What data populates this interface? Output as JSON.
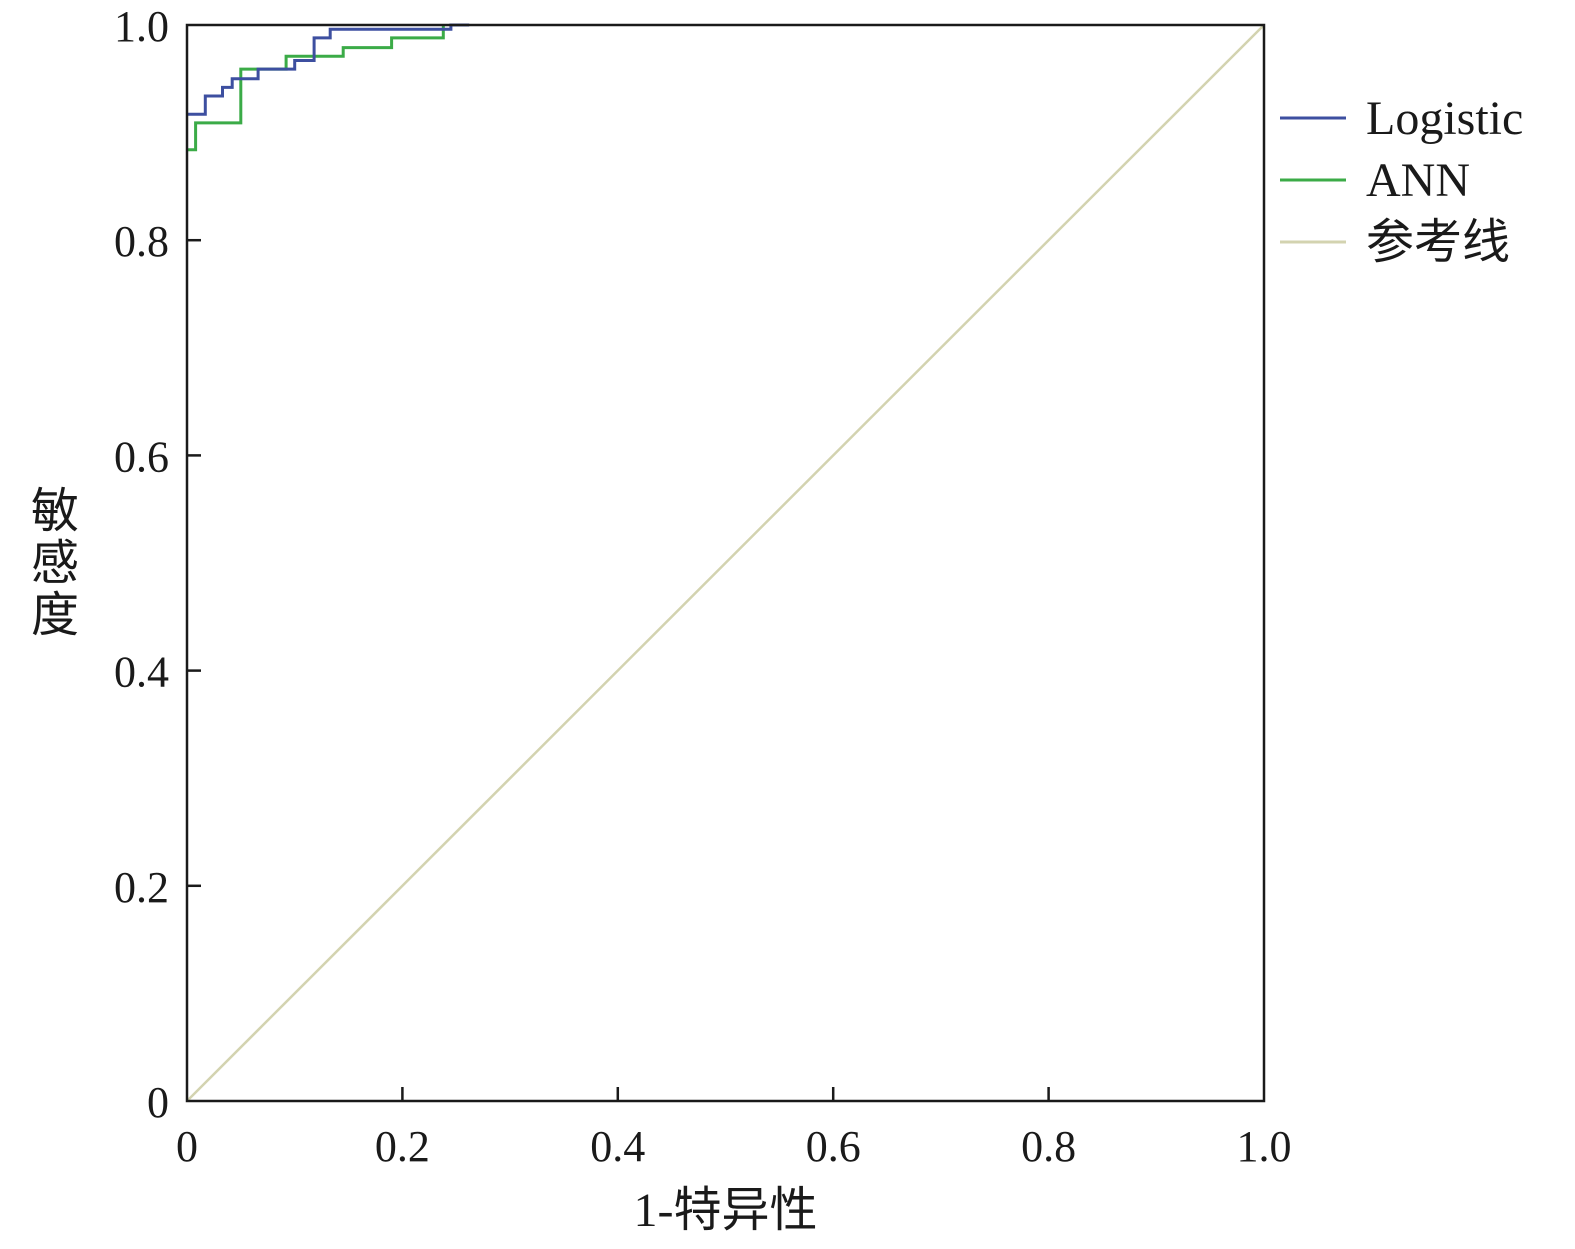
{
  "chart_data": {
    "type": "line",
    "xlabel": "1-特异性",
    "ylabel": "敏感度",
    "xlim": [
      0,
      1
    ],
    "ylim": [
      0,
      1
    ],
    "x_ticks": [
      0,
      0.2,
      0.4,
      0.6,
      0.8,
      1.0
    ],
    "x_tick_labels": [
      "0",
      "0.2",
      "0.4",
      "0.6",
      "0.8",
      "1.0"
    ],
    "y_ticks": [
      0,
      0.2,
      0.4,
      0.6,
      0.8,
      1.0
    ],
    "y_tick_labels": [
      "0",
      "0.2",
      "0.4",
      "0.6",
      "0.8",
      "1.0"
    ],
    "grid": false,
    "legend_position": "right",
    "series": [
      {
        "name": "Logistic",
        "color": "#3d4fa0",
        "step": true,
        "points": [
          [
            0,
            0.917
          ],
          [
            0.017,
            0.917
          ],
          [
            0.017,
            0.934
          ],
          [
            0.033,
            0.934
          ],
          [
            0.033,
            0.942
          ],
          [
            0.042,
            0.942
          ],
          [
            0.042,
            0.95
          ],
          [
            0.066,
            0.95
          ],
          [
            0.066,
            0.959
          ],
          [
            0.1,
            0.959
          ],
          [
            0.1,
            0.967
          ],
          [
            0.118,
            0.967
          ],
          [
            0.118,
            0.988
          ],
          [
            0.133,
            0.988
          ],
          [
            0.133,
            0.996
          ],
          [
            0.245,
            0.996
          ],
          [
            0.245,
            1.0
          ],
          [
            0.262,
            1.0
          ]
        ]
      },
      {
        "name": "ANN",
        "color": "#3bab47",
        "step": true,
        "points": [
          [
            0,
            0.884
          ],
          [
            0.008,
            0.884
          ],
          [
            0.008,
            0.909
          ],
          [
            0.05,
            0.909
          ],
          [
            0.05,
            0.959
          ],
          [
            0.092,
            0.959
          ],
          [
            0.092,
            0.971
          ],
          [
            0.145,
            0.971
          ],
          [
            0.145,
            0.979
          ],
          [
            0.19,
            0.979
          ],
          [
            0.19,
            0.988
          ],
          [
            0.238,
            0.988
          ],
          [
            0.238,
            1.0
          ]
        ]
      },
      {
        "name": "参考线",
        "color": "#d3d3b0",
        "step": false,
        "points": [
          [
            0,
            0
          ],
          [
            1,
            1
          ]
        ]
      }
    ]
  }
}
